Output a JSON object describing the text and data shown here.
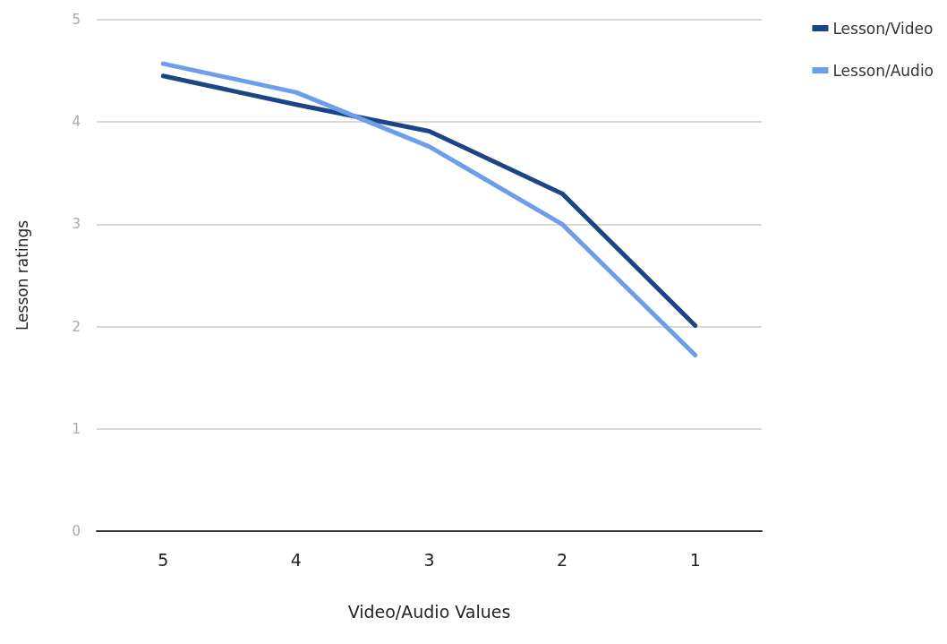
{
  "chart_data": {
    "type": "line",
    "xlabel": "Video/Audio Values",
    "ylabel": "Lesson ratings",
    "categories": [
      "5",
      "4",
      "3",
      "2",
      "1"
    ],
    "series": [
      {
        "name": "Lesson/Video",
        "color": "#1c4587",
        "values": [
          4.45,
          4.17,
          3.91,
          3.3,
          2.01
        ]
      },
      {
        "name": "Lesson/Audio",
        "color": "#6d9eeb",
        "values": [
          4.57,
          4.29,
          3.76,
          3.0,
          1.72
        ]
      }
    ],
    "ylim": [
      0,
      5
    ],
    "yticks": [
      0,
      1,
      2,
      3,
      4,
      5
    ],
    "grid": "y",
    "legend": "top right",
    "marker": "none",
    "line_style": "solid"
  }
}
